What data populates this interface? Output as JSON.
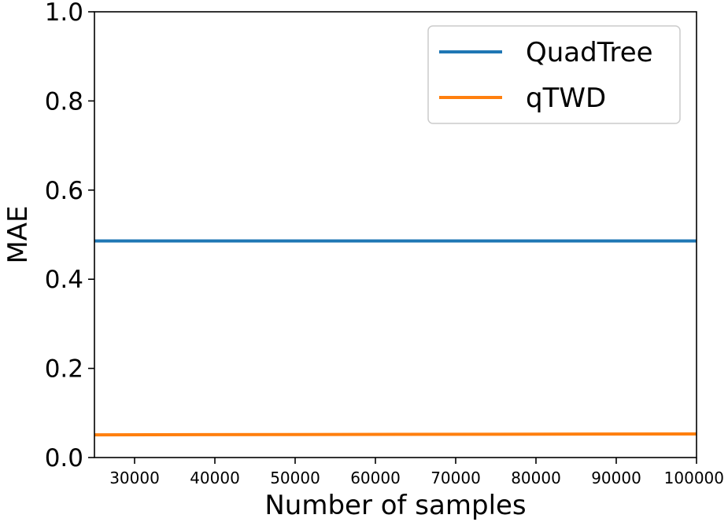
{
  "chart_data": {
    "type": "line",
    "title": "",
    "xlabel": "Number of samples",
    "ylabel": "MAE",
    "xlim": [
      25000,
      100000
    ],
    "ylim": [
      0.0,
      1.0
    ],
    "x_ticks": [
      30000,
      40000,
      50000,
      60000,
      70000,
      80000,
      90000,
      100000
    ],
    "x_tick_labels": [
      "30000",
      "40000",
      "50000",
      "60000",
      "70000",
      "80000",
      "90000",
      "100000"
    ],
    "y_ticks": [
      0.0,
      0.2,
      0.4,
      0.6,
      0.8,
      1.0
    ],
    "y_tick_labels": [
      "0.0",
      "0.2",
      "0.4",
      "0.6",
      "0.8",
      "1.0"
    ],
    "grid": false,
    "legend_position": "top-right",
    "series": [
      {
        "name": "QuadTree",
        "color": "#1f77b4",
        "x": [
          25000,
          100000
        ],
        "y": [
          0.486,
          0.486
        ]
      },
      {
        "name": "qTWD",
        "color": "#ff7f0e",
        "x": [
          25000,
          100000
        ],
        "y": [
          0.051,
          0.053
        ]
      }
    ]
  }
}
